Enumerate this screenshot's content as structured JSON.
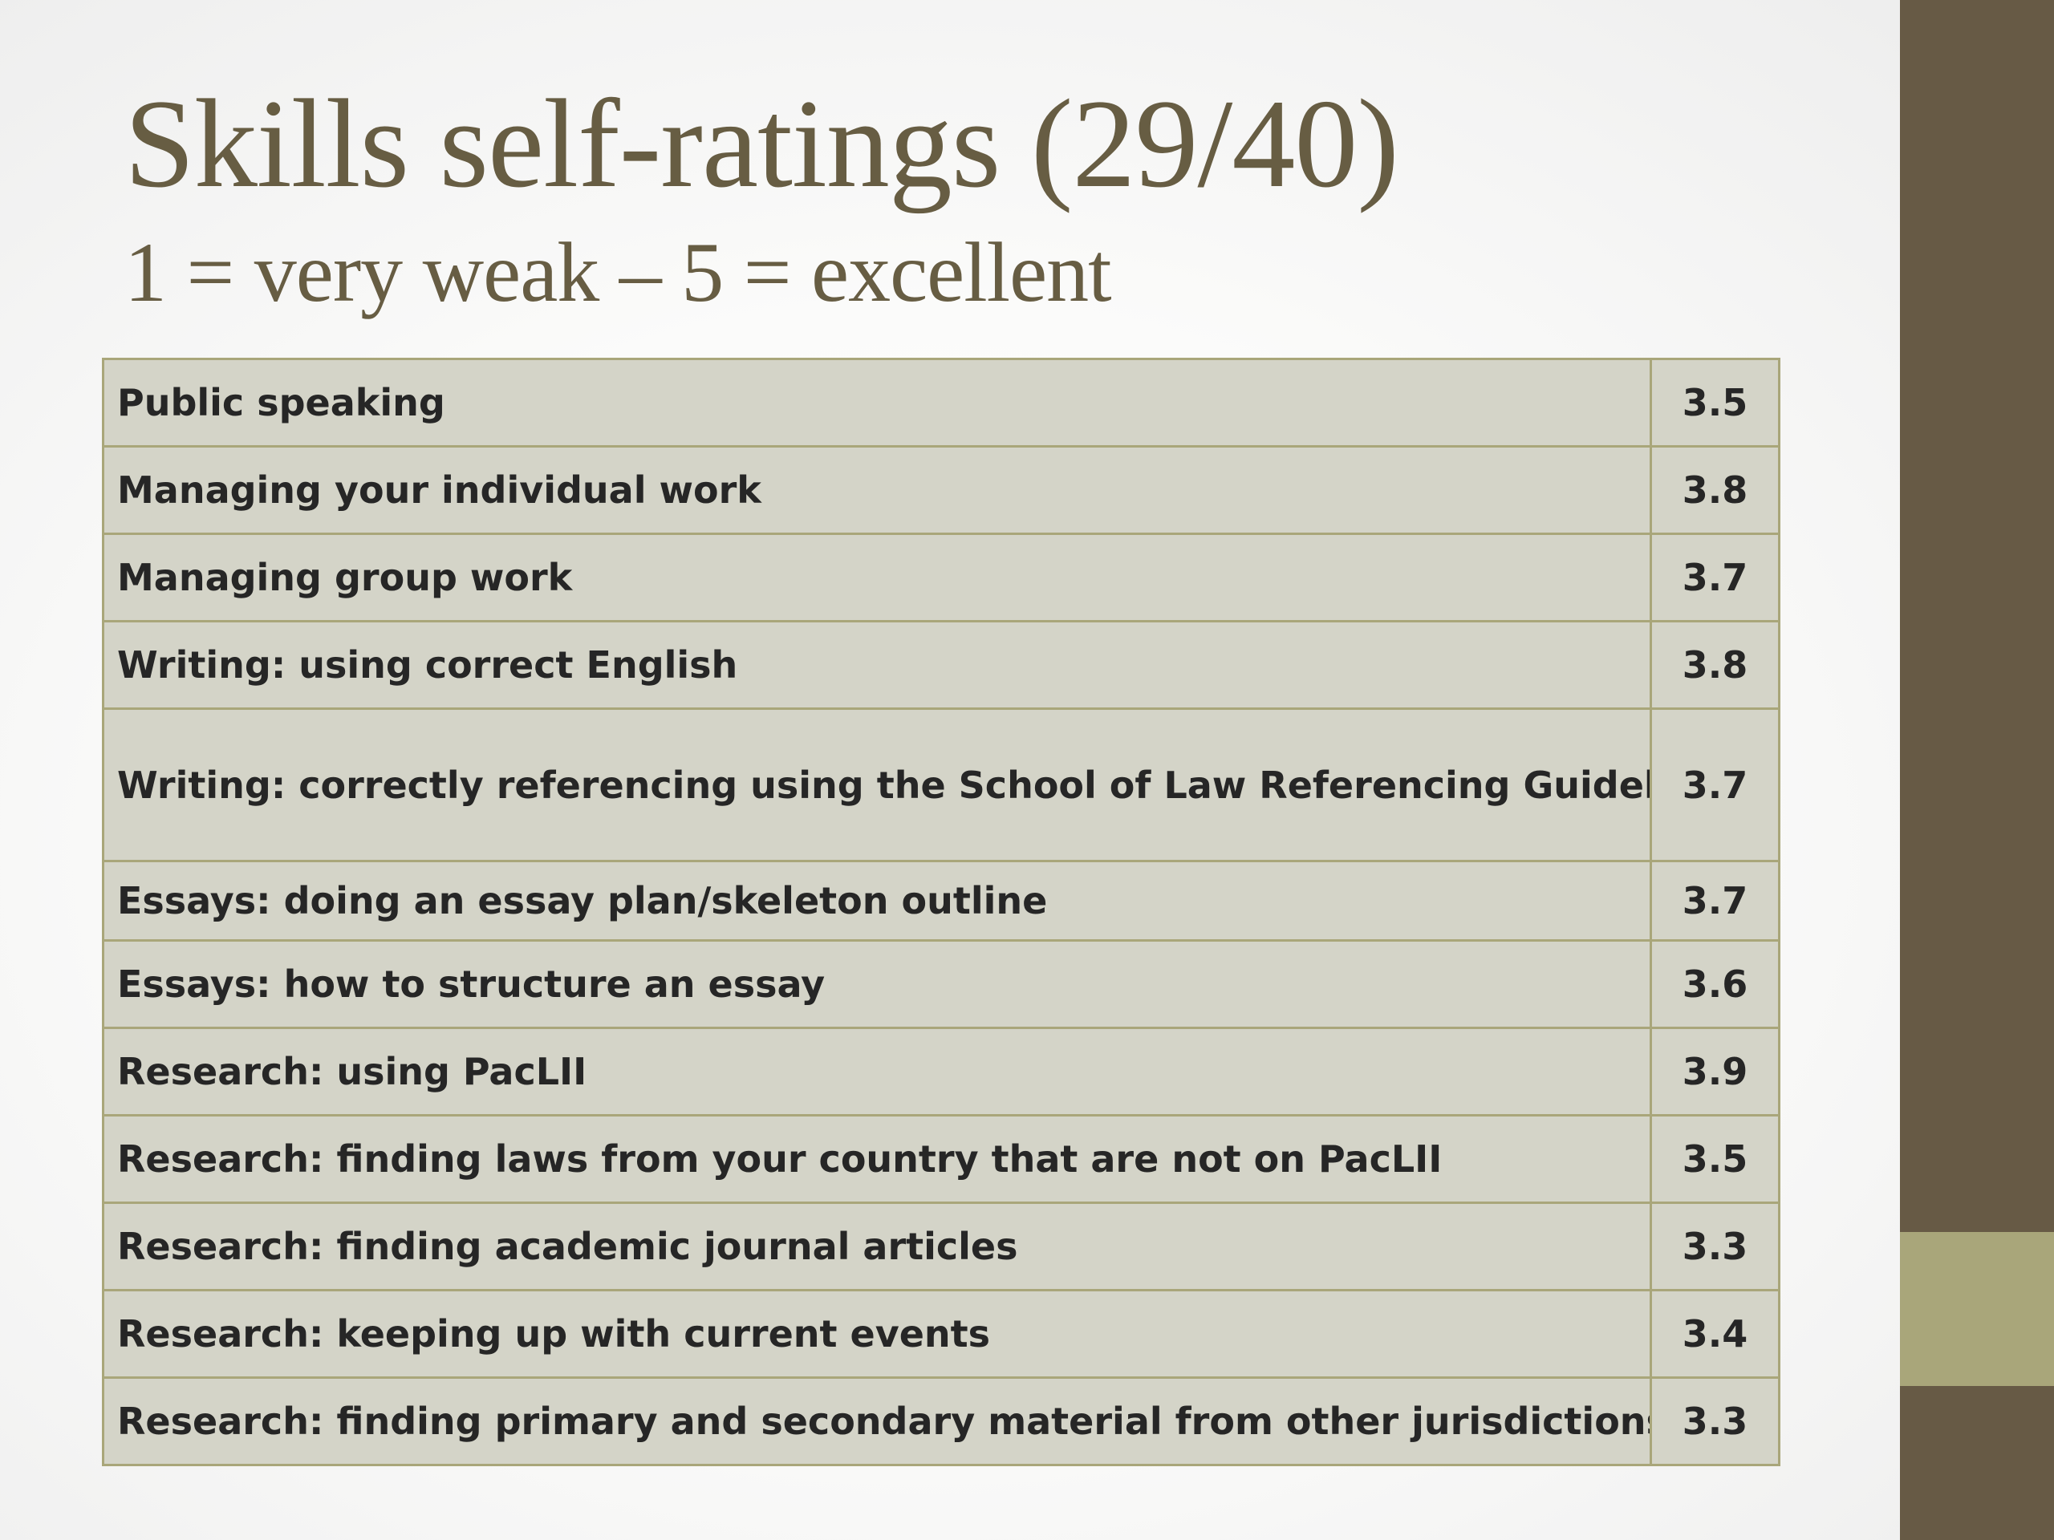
{
  "slide": {
    "title": "Skills self-ratings (29/40)",
    "subtitle": "1 = very weak – 5 = excellent",
    "colors": {
      "title_text": "#675d43",
      "right_band": "#675a45",
      "right_accent": "#a9a67a",
      "table_fill": "#d4d4c8",
      "table_border": "#a9a67a",
      "cell_text": "#262626"
    }
  },
  "table": {
    "rows": [
      {
        "skill": "Public speaking",
        "rating": "3.5"
      },
      {
        "skill": "Managing your individual work",
        "rating": "3.8"
      },
      {
        "skill": "Managing group work",
        "rating": "3.7"
      },
      {
        "skill": "Writing: using correct English",
        "rating": "3.8"
      },
      {
        "skill": "Writing: correctly referencing using the School of Law Referencing Guidebook",
        "rating": "3.7"
      },
      {
        "skill": "Essays: doing an essay plan/skeleton outline",
        "rating": "3.7"
      },
      {
        "skill": "Essays: how to structure an essay",
        "rating": "3.6"
      },
      {
        "skill": "Research: using PacLII",
        "rating": "3.9"
      },
      {
        "skill": "Research: finding laws from your country that are not on PacLII",
        "rating": "3.5"
      },
      {
        "skill": "Research: finding academic journal articles",
        "rating": "3.3"
      },
      {
        "skill": "Research: keeping up with current events",
        "rating": "3.4"
      },
      {
        "skill": "Research: finding primary and secondary material from other jurisdictions",
        "rating": "3.3"
      }
    ]
  }
}
